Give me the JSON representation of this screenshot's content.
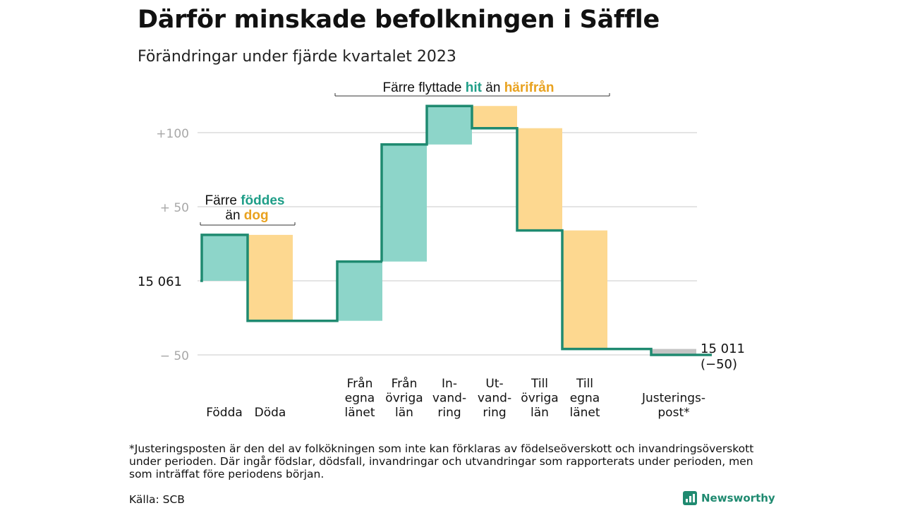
{
  "title": "Därför minskade befolkningen i Säffle",
  "subtitle": "Förändringar under fjärde kvartalet 2023",
  "chart_data": {
    "type": "waterfall",
    "start_value": 15061,
    "start_label": "15  061",
    "end_label_line1": "15 011",
    "end_label_line2": "(−50)",
    "y_relative_range": [
      -60,
      120
    ],
    "y_ticks": [
      {
        "value": 100,
        "label": "+100"
      },
      {
        "value": 50,
        "label": "+  50"
      },
      {
        "value": -50,
        "label": "−  50"
      }
    ],
    "grid": true,
    "colors": {
      "in": "#8dd5c9",
      "out": "#fdd890",
      "adjust": "#c4c4c4",
      "line": "#1f8a70",
      "hit_text": "#1f9e88",
      "harifran_text": "#e9a21f"
    },
    "steps": [
      {
        "label_lines": [
          "Födda"
        ],
        "change": 31,
        "kind": "in"
      },
      {
        "label_lines": [
          "Döda"
        ],
        "change": -58,
        "kind": "out"
      },
      {
        "label_lines": [
          "Från",
          "egna",
          "länet"
        ],
        "change": 40,
        "kind": "in"
      },
      {
        "label_lines": [
          "Från",
          "övriga",
          "län"
        ],
        "change": 79,
        "kind": "in"
      },
      {
        "label_lines": [
          "In-",
          "vand-",
          "ring"
        ],
        "change": 26,
        "kind": "in"
      },
      {
        "label_lines": [
          "Ut-",
          "vand-",
          "ring"
        ],
        "change": -15,
        "kind": "out"
      },
      {
        "label_lines": [
          "Till",
          "övriga",
          "län"
        ],
        "change": -69,
        "kind": "out"
      },
      {
        "label_lines": [
          "Till",
          "egna",
          "länet"
        ],
        "change": -80,
        "kind": "out"
      },
      {
        "label_lines": [
          "Justerings-",
          "post*"
        ],
        "change": -4,
        "kind": "adjust"
      }
    ],
    "annotations": [
      {
        "text_parts": [
          "Färre ",
          "föddes"
        ],
        "line2_parts": [
          "än ",
          "dog"
        ]
      },
      {
        "text_parts": [
          "Färre flyttade ",
          "hit",
          " än ",
          "härifrån"
        ]
      }
    ]
  },
  "footnote": "*Justeringsposten är den del av folkökningen som inte kan förklaras av födelseöverskott och invandringsöverskott under perioden. Där ingår födslar, dödsfall, invandringar och utvandringar som rapporterats under perioden, men som inträffat före periodens början.",
  "source": "Källa: SCB",
  "brand": "Newsworthy"
}
